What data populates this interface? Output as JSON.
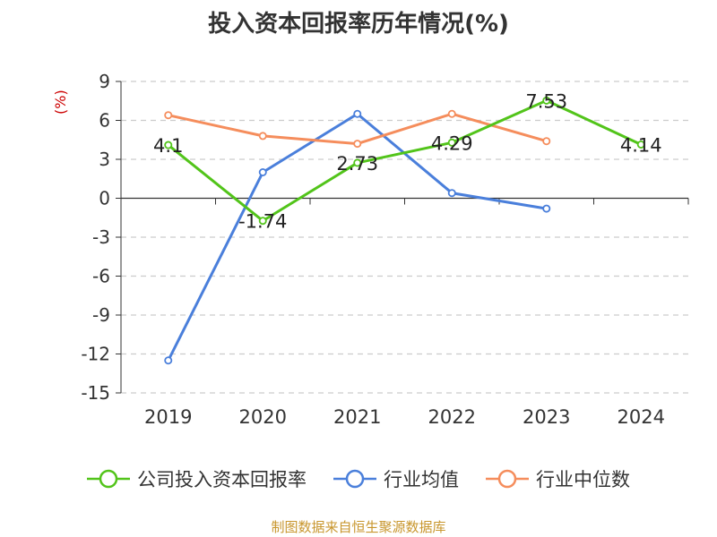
{
  "chart_data": {
    "type": "line",
    "title": "投入资本回报率历年情况(%)",
    "ylabel": "(%)",
    "categories": [
      "2019",
      "2020",
      "2021",
      "2022",
      "2023",
      "2024"
    ],
    "ylim": [
      -15,
      9
    ],
    "yticks": [
      9,
      6,
      3,
      0,
      -3,
      -6,
      -9,
      -12,
      -15
    ],
    "grid": true,
    "legend_position": "bottom",
    "series": [
      {
        "name": "公司投入资本回报率",
        "color": "#52c41a",
        "values": [
          4.1,
          -1.74,
          2.73,
          4.29,
          7.53,
          4.14
        ],
        "labels": [
          "4.1",
          "-1.74",
          "2.73",
          "4.29",
          "7.53",
          "4.14"
        ]
      },
      {
        "name": "行业均值",
        "color": "#4a7fdb",
        "values": [
          -12.5,
          2.0,
          6.5,
          0.4,
          -0.8,
          null
        ]
      },
      {
        "name": "行业中位数",
        "color": "#f58d5c",
        "values": [
          6.4,
          4.8,
          4.2,
          6.5,
          4.4,
          null
        ]
      }
    ]
  },
  "source_text": "制图数据来自恒生聚源数据库",
  "colors": {
    "title": "#333333",
    "ylabel": "#cc0000",
    "source": "#c8962d"
  }
}
